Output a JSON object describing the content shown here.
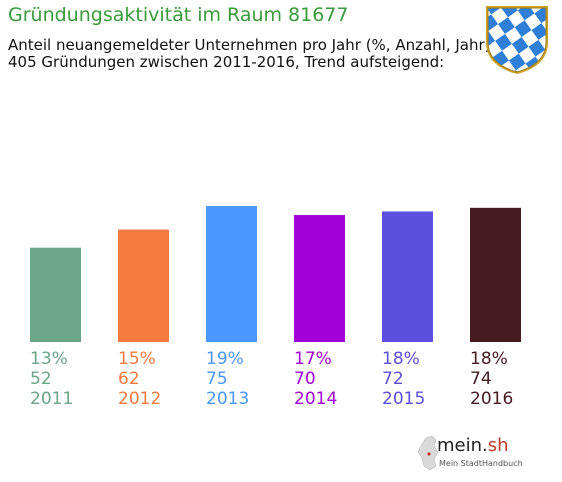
{
  "header": {
    "title": "Gründungsaktivität im Raum 81677",
    "subtitle_line1": "Anteil neuangemeldeter Unternehmen pro Jahr (%, Anzahl, Jahr)",
    "subtitle_line2": "405 Gründungen zwischen 2011-2016, Trend aufsteigend:"
  },
  "crest": {
    "icon": "bavarian-lozenge-crest-icon",
    "colors": {
      "blue": "#2f7fd8",
      "white": "#ffffff",
      "border": "#c9a227"
    }
  },
  "brand": {
    "name_main": "mein.",
    "name_accent": "sh",
    "tagline": "Mein StadtHandbuch",
    "icon": "germany-map-icon"
  },
  "chart_data": {
    "type": "bar",
    "categories": [
      "2011",
      "2012",
      "2013",
      "2014",
      "2015",
      "2016"
    ],
    "values": [
      52,
      62,
      75,
      70,
      72,
      74
    ],
    "percent_labels": [
      "13%",
      "15%",
      "19%",
      "17%",
      "18%",
      "18%"
    ],
    "colors": [
      "#6aa68a",
      "#f47b40",
      "#4b97ff",
      "#a000d6",
      "#5c4fe0",
      "#461b22"
    ],
    "title": "Gründungsaktivität im Raum 81677",
    "xlabel": "",
    "ylabel": "",
    "ylim": [
      0,
      75
    ],
    "grid": false,
    "legend": "none"
  }
}
